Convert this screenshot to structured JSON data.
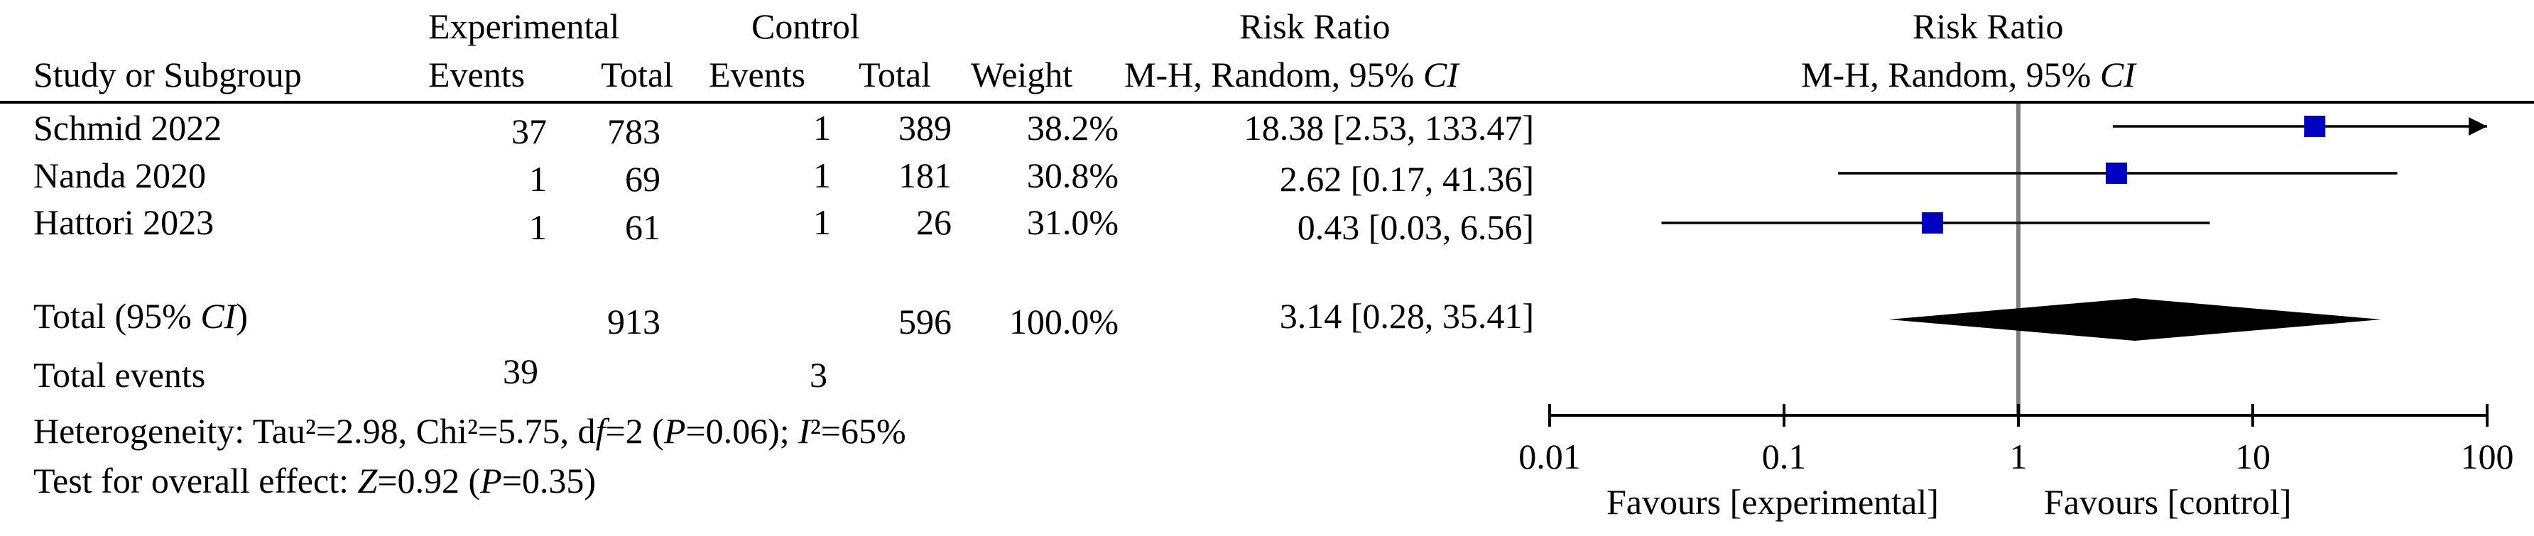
{
  "header": {
    "group_experimental": "Experimental",
    "group_control": "Control",
    "col_study": "Study or Subgroup",
    "col_exp_events": "Events",
    "col_exp_total": "Total",
    "col_ctl_events": "Events",
    "col_ctl_total": "Total",
    "col_weight": "Weight",
    "col_rr_title": "Risk Ratio",
    "col_rr_method": "M-H, Random, 95% CI",
    "plot_title": "Risk Ratio",
    "plot_method": "M-H, Random, 95% CI"
  },
  "studies": [
    {
      "name": "Schmid 2022",
      "exp_events": "37",
      "exp_total": "783",
      "ctl_events": "1",
      "ctl_total": "389",
      "weight": "38.2%",
      "ci_text": "18.38 [2.53, 133.47]"
    },
    {
      "name": "Nanda 2020",
      "exp_events": "1",
      "exp_total": "69",
      "ctl_events": "1",
      "ctl_total": "181",
      "weight": "30.8%",
      "ci_text": "2.62 [0.17, 41.36]"
    },
    {
      "name": "Hattori 2023",
      "exp_events": "1",
      "exp_total": "61",
      "ctl_events": "1",
      "ctl_total": "26",
      "weight": "31.0%",
      "ci_text": "0.43 [0.03, 6.56]"
    }
  ],
  "total": {
    "label": "Total (95% CI)",
    "exp_total": "913",
    "ctl_total": "596",
    "weight": "100.0%",
    "ci_text": "3.14 [0.28, 35.41]",
    "events_label": "Total events",
    "exp_events": "39",
    "ctl_events": "3"
  },
  "footer": {
    "heterogeneity": "Heterogeneity: Tau²=2.98, Chi²=5.75, df=2 (P=0.06); I²=65%",
    "overall_effect": "Test for overall effect: Z=0.92 (P=0.35)"
  },
  "axis": {
    "ticks": [
      "0.01",
      "0.1",
      "1",
      "10",
      "100"
    ],
    "favours_left": "Favours [experimental]",
    "favours_right": "Favours [control]"
  },
  "colors": {
    "marker": "#0000c0",
    "diamond": "#000000",
    "null_line": "#808080"
  },
  "chart_data": {
    "type": "forest",
    "scale": "log",
    "xlim": [
      0.01,
      100
    ],
    "null_value": 1,
    "points": [
      {
        "study": "Schmid 2022",
        "rr": 18.38,
        "lower": 2.53,
        "upper": 133.47,
        "weight": 38.2
      },
      {
        "study": "Nanda 2020",
        "rr": 2.62,
        "lower": 0.17,
        "upper": 41.36,
        "weight": 30.8
      },
      {
        "study": "Hattori 2023",
        "rr": 0.43,
        "lower": 0.03,
        "upper": 6.56,
        "weight": 31.0
      }
    ],
    "pooled": {
      "rr": 3.14,
      "lower": 0.28,
      "upper": 35.41
    }
  }
}
